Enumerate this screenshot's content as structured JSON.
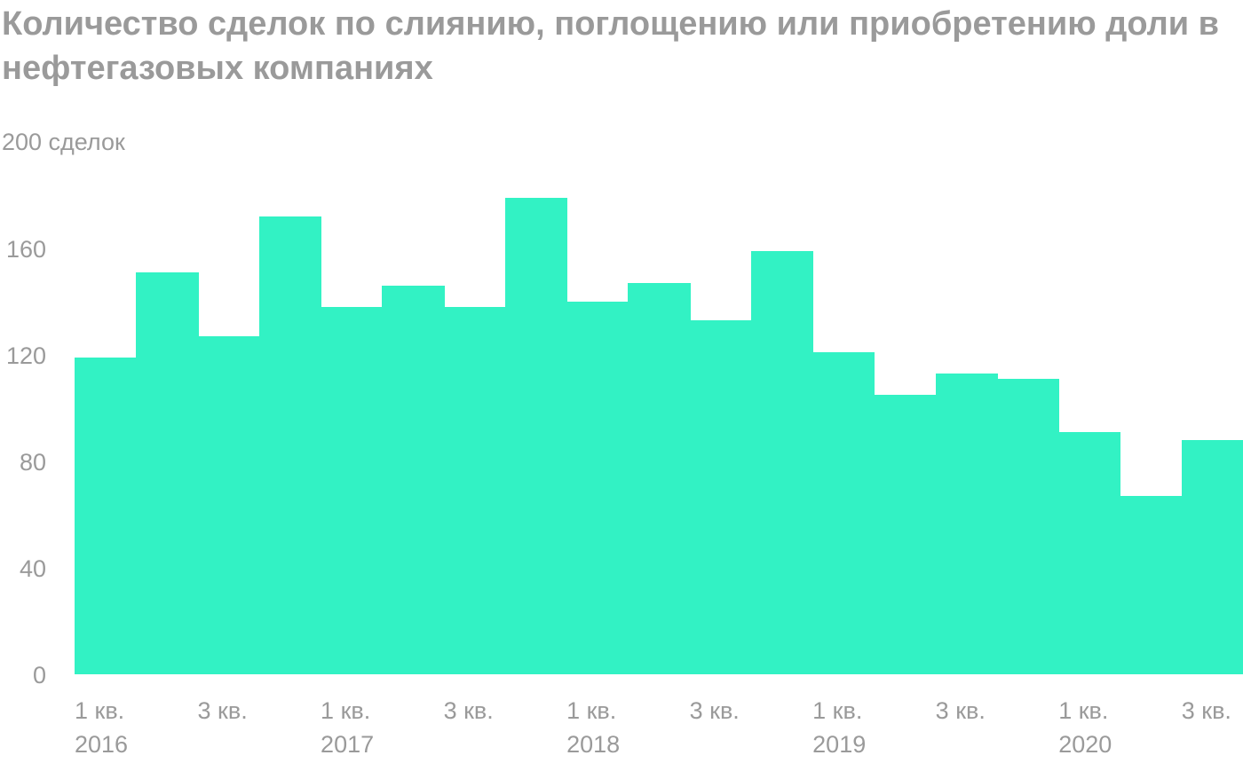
{
  "title": "Количество сделок по слиянию, поглощению или приобретению доли в нефтегазовых компаниях",
  "y_unit_label": "200 сделок",
  "colors": {
    "bar": "#32f2c4",
    "text": "#9a9a9a"
  },
  "chart_data": {
    "type": "bar",
    "title": "Количество сделок по слиянию, поглощению или приобретению доли в нефтегазовых компаниях",
    "ylabel": "200 сделок",
    "ylim": [
      0,
      200
    ],
    "yticks": [
      "0",
      "40",
      "80",
      "120",
      "160"
    ],
    "grid": false,
    "categories": [
      "1 кв. 2016",
      "2 кв. 2016",
      "3 кв. 2016",
      "4 кв. 2016",
      "1 кв. 2017",
      "2 кв. 2017",
      "3 кв. 2017",
      "4 кв. 2017",
      "1 кв. 2018",
      "2 кв. 2018",
      "3 кв. 2018",
      "4 кв. 2018",
      "1 кв. 2019",
      "2 кв. 2019",
      "3 кв. 2019",
      "4 кв. 2019",
      "1 кв. 2020",
      "2 кв. 2020",
      "3 кв. 2020"
    ],
    "values": [
      119,
      151,
      127,
      172,
      138,
      146,
      138,
      179,
      140,
      147,
      133,
      159,
      121,
      105,
      113,
      111,
      91,
      67,
      88
    ],
    "x_tick_labels": [
      {
        "index": 0,
        "quarter": "1 кв.",
        "year": "2016"
      },
      {
        "index": 2,
        "quarter": "3 кв.",
        "year": ""
      },
      {
        "index": 4,
        "quarter": "1 кв.",
        "year": "2017"
      },
      {
        "index": 6,
        "quarter": "3 кв.",
        "year": ""
      },
      {
        "index": 8,
        "quarter": "1 кв.",
        "year": "2018"
      },
      {
        "index": 10,
        "quarter": "3 кв.",
        "year": ""
      },
      {
        "index": 12,
        "quarter": "1 кв.",
        "year": "2019"
      },
      {
        "index": 14,
        "quarter": "3 кв.",
        "year": ""
      },
      {
        "index": 16,
        "quarter": "1 кв.",
        "year": "2020"
      },
      {
        "index": 18,
        "quarter": "3 кв.",
        "year": ""
      }
    ]
  }
}
